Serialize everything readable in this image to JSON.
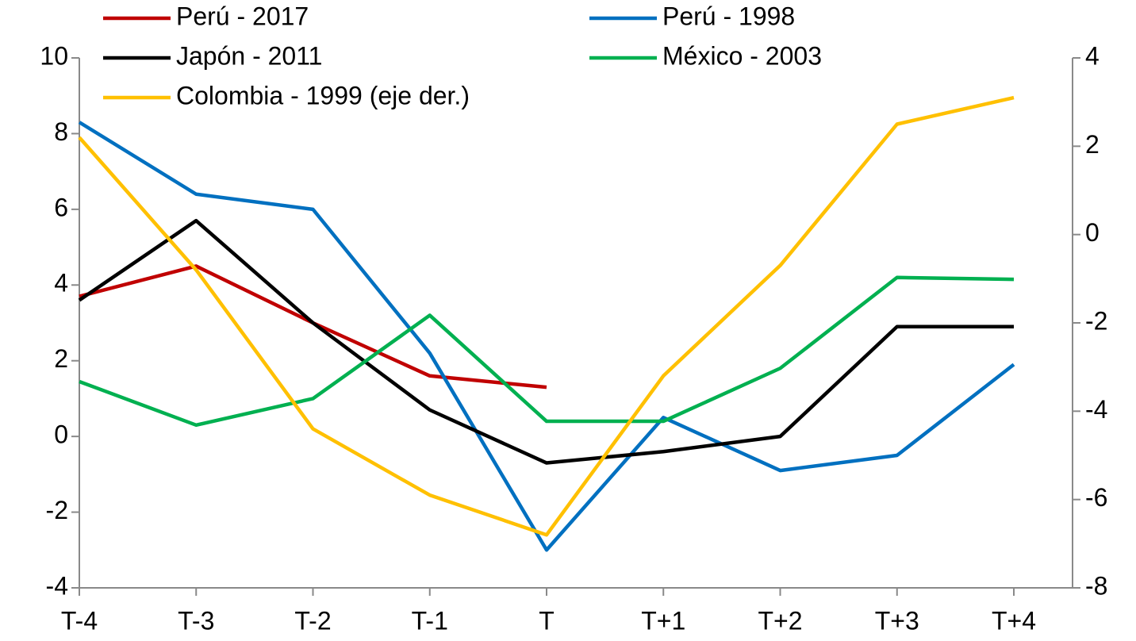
{
  "chart_data": {
    "type": "line",
    "categories": [
      "T-4",
      "T-3",
      "T-2",
      "T-1",
      "T",
      "T+1",
      "T+2",
      "T+3",
      "T+4"
    ],
    "series": [
      {
        "name": "Perú - 2017",
        "color": "#c00000",
        "values": [
          3.7,
          4.5,
          3.0,
          1.6,
          1.3,
          null,
          null,
          null,
          null
        ]
      },
      {
        "name": "Perú - 1998",
        "color": "#0070c0",
        "values": [
          8.3,
          6.4,
          6.0,
          2.2,
          -3.0,
          0.5,
          -0.9,
          -0.5,
          1.9
        ]
      },
      {
        "name": "Japón - 2011",
        "color": "#000000",
        "values": [
          3.6,
          5.7,
          3.0,
          0.7,
          -0.7,
          -0.4,
          0,
          2.9,
          2.9
        ]
      },
      {
        "name": "México - 2003",
        "color": "#00b050",
        "values": [
          1.45,
          0.3,
          1.0,
          3.2,
          0.4,
          0.4,
          1.8,
          4.2,
          4.15
        ]
      },
      {
        "name": "Colombia - 1999 (eje der.)",
        "color": "#ffc000",
        "axis": "y2",
        "values": [
          2.2,
          -0.8,
          -4.4,
          -5.9,
          -6.8,
          -3.2,
          -0.7,
          2.5,
          3.1
        ]
      }
    ],
    "ylim": [
      -4,
      10
    ],
    "yticks": [
      -4,
      -2,
      0,
      2,
      4,
      6,
      8,
      10
    ],
    "y2lim": [
      -8,
      4
    ],
    "y2ticks": [
      -8,
      -6,
      -4,
      -2,
      0,
      2,
      4
    ]
  }
}
